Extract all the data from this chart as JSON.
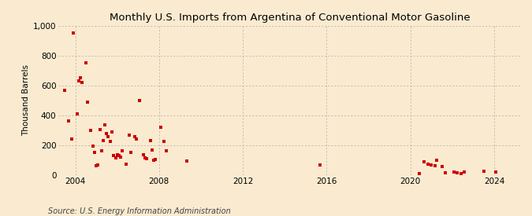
{
  "title": "Monthly U.S. Imports from Argentina of Conventional Motor Gasoline",
  "ylabel": "Thousand Barrels",
  "source": "Source: U.S. Energy Information Administration",
  "background_color": "#faebd0",
  "marker_color": "#cc0000",
  "marker_size": 6,
  "ylim": [
    0,
    1000
  ],
  "yticks": [
    0,
    200,
    400,
    600,
    800,
    1000
  ],
  "ytick_labels": [
    "0",
    "200",
    "400",
    "600",
    "800",
    "1,000"
  ],
  "xlim_start": 2003.2,
  "xlim_end": 2025.3,
  "xticks": [
    2004,
    2008,
    2012,
    2016,
    2020,
    2024
  ],
  "data_points": [
    [
      2003.5,
      570
    ],
    [
      2003.67,
      360
    ],
    [
      2003.83,
      240
    ],
    [
      2003.92,
      950
    ],
    [
      2004.08,
      410
    ],
    [
      2004.17,
      630
    ],
    [
      2004.25,
      650
    ],
    [
      2004.33,
      620
    ],
    [
      2004.5,
      750
    ],
    [
      2004.58,
      490
    ],
    [
      2004.75,
      300
    ],
    [
      2004.83,
      195
    ],
    [
      2004.92,
      150
    ],
    [
      2005.0,
      60
    ],
    [
      2005.08,
      65
    ],
    [
      2005.17,
      305
    ],
    [
      2005.25,
      160
    ],
    [
      2005.33,
      230
    ],
    [
      2005.42,
      335
    ],
    [
      2005.5,
      280
    ],
    [
      2005.58,
      255
    ],
    [
      2005.67,
      225
    ],
    [
      2005.75,
      290
    ],
    [
      2005.83,
      130
    ],
    [
      2005.92,
      115
    ],
    [
      2006.0,
      135
    ],
    [
      2006.08,
      130
    ],
    [
      2006.17,
      120
    ],
    [
      2006.25,
      160
    ],
    [
      2006.42,
      75
    ],
    [
      2006.58,
      270
    ],
    [
      2006.67,
      150
    ],
    [
      2006.83,
      255
    ],
    [
      2006.92,
      240
    ],
    [
      2007.08,
      500
    ],
    [
      2007.25,
      135
    ],
    [
      2007.33,
      115
    ],
    [
      2007.42,
      110
    ],
    [
      2007.58,
      230
    ],
    [
      2007.67,
      165
    ],
    [
      2007.75,
      100
    ],
    [
      2007.83,
      105
    ],
    [
      2008.08,
      320
    ],
    [
      2008.25,
      225
    ],
    [
      2008.33,
      160
    ],
    [
      2009.33,
      95
    ],
    [
      2015.67,
      65
    ],
    [
      2020.42,
      10
    ],
    [
      2020.67,
      90
    ],
    [
      2020.83,
      75
    ],
    [
      2021.0,
      65
    ],
    [
      2021.17,
      60
    ],
    [
      2021.25,
      100
    ],
    [
      2021.5,
      55
    ],
    [
      2021.67,
      15
    ],
    [
      2022.08,
      20
    ],
    [
      2022.25,
      15
    ],
    [
      2022.42,
      10
    ],
    [
      2022.58,
      20
    ],
    [
      2023.5,
      25
    ],
    [
      2024.08,
      20
    ]
  ]
}
